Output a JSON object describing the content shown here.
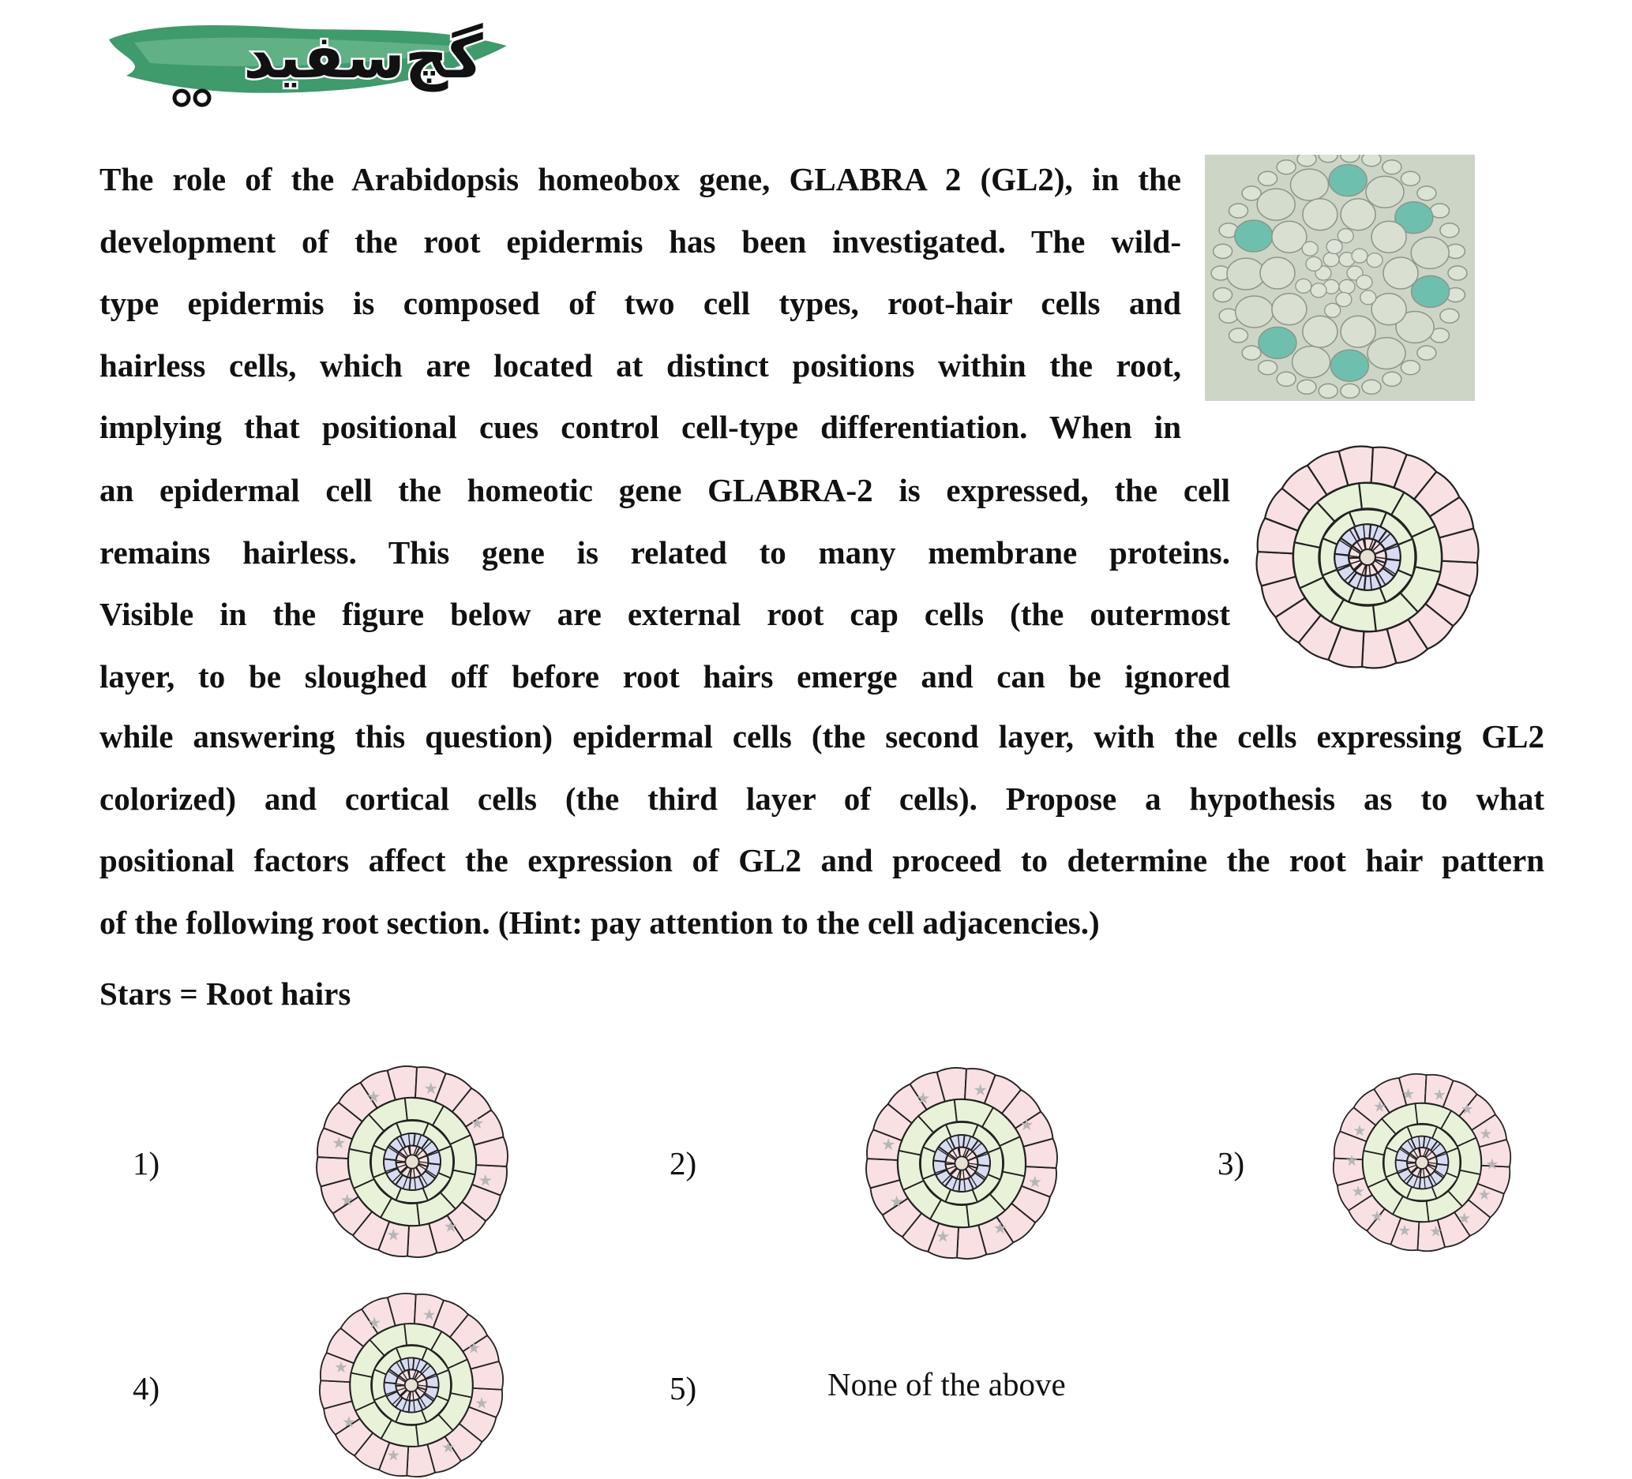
{
  "logo": {
    "text": "گچ‌سفید",
    "colors": {
      "brush": "#3f9a6c",
      "brush_light": "#7cc49b",
      "ink": "#111111"
    }
  },
  "paragraph_lines_1": [
    "The role of the Arabidopsis homeobox gene, GLABRA 2 (GL2), in the",
    "development of the root epidermis has been investigated. The wild-",
    "type epidermis is composed of two cell types, root-hair cells and",
    "hairless cells, which are located at distinct positions within the root,",
    "implying that positional cues control cell-type differentiation. When in"
  ],
  "paragraph_lines_2": [
    "an epidermal cell the homeotic gene GLABRA-2 is expressed, the cell",
    "remains hairless. This gene is related to many membrane proteins.",
    "Visible in the figure below are external root cap cells (the outermost",
    "layer, to be sloughed off before root hairs emerge and can be ignored"
  ],
  "paragraph_lines_3": [
    "while answering this question) epidermal cells (the second layer, with the cells expressing GL2",
    "colorized) and cortical cells (the third layer of cells). Propose a hypothesis as to what",
    "positional factors affect the expression of GL2 and proceed to determine the root hair pattern",
    "of the following root section. (Hint: pay attention to the cell adjacencies.)"
  ],
  "legend": "Stars = Root hairs",
  "options": [
    {
      "label": "1)",
      "stars": 8
    },
    {
      "label": "2)",
      "stars": 8
    },
    {
      "label": "3)",
      "stars": 14
    },
    {
      "label": "4)",
      "stars": 8
    },
    {
      "label": "5)",
      "text": "None of the above"
    }
  ],
  "colors": {
    "rootcap": "#f9e0e2",
    "epidermis": "#e8f2d8",
    "stele": "#d8dcf2",
    "photo_bg": "#cdd6c6",
    "gl2_stain": "#6fbfae",
    "star": "#b6b6b6"
  }
}
